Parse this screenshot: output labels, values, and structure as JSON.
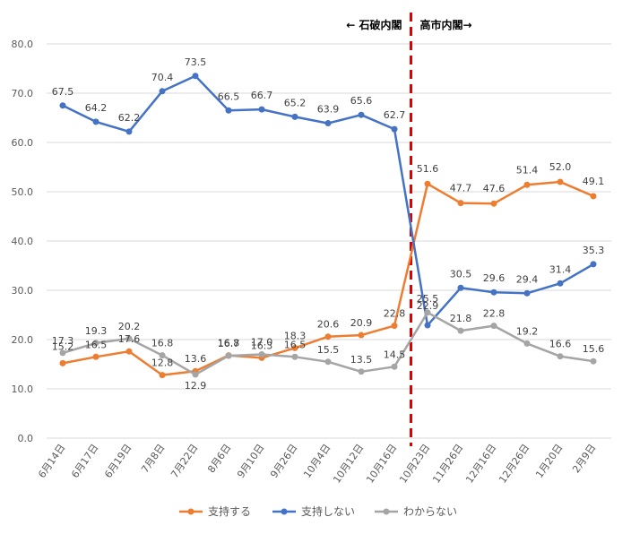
{
  "chart_data": {
    "type": "line",
    "categories": [
      "6月14日",
      "6月17日",
      "6月19日",
      "7月8日",
      "7月22日",
      "8月6日",
      "9月10日",
      "9月26日",
      "10月4日",
      "10月12日",
      "10月16日",
      "10月23日",
      "11月26日",
      "12月16日",
      "12月26日",
      "1月20日",
      "2月9日"
    ],
    "series": [
      {
        "name": "支持する",
        "color": "#ED7D31",
        "values": [
          15.2,
          16.5,
          17.6,
          12.8,
          13.6,
          16.8,
          16.3,
          18.3,
          20.6,
          20.9,
          22.8,
          51.6,
          47.7,
          47.6,
          51.4,
          52.0,
          49.1
        ]
      },
      {
        "name": "支持しない",
        "color": "#4472C4",
        "values": [
          67.5,
          64.2,
          62.2,
          70.4,
          73.5,
          66.5,
          66.7,
          65.2,
          63.9,
          65.6,
          62.7,
          22.9,
          30.5,
          29.6,
          29.4,
          31.4,
          35.3
        ]
      },
      {
        "name": "わからない",
        "color": "#A5A5A5",
        "values": [
          17.3,
          19.3,
          20.2,
          16.8,
          12.9,
          16.7,
          17.0,
          16.5,
          15.5,
          13.5,
          14.5,
          25.5,
          21.8,
          22.8,
          19.2,
          16.6,
          15.6
        ]
      }
    ],
    "yticks": [
      "0.0",
      "10.0",
      "20.0",
      "30.0",
      "40.0",
      "50.0",
      "60.0",
      "70.0",
      "80.0"
    ],
    "ylim": [
      0,
      80
    ],
    "grid": true,
    "legend_position": "bottom",
    "annotations": {
      "left": "← 石破内閣",
      "right": "高市内閣→"
    },
    "divider_after_category": "10月16日",
    "divider_color": "#E00000",
    "value_labels": {
      "支持する": [
        "15.2",
        "16.5",
        "17.6",
        "12.8",
        "13.6",
        "16.8",
        "16.3",
        "18.3",
        "20.6",
        "20.9",
        "22.8",
        "51.6",
        "47.7",
        "47.6",
        "51.4",
        "52.0",
        "49.1"
      ],
      "支持しない": [
        "67.5",
        "64.2",
        "62.2",
        "70.4",
        "73.5",
        "66.5",
        "66.7",
        "65.2",
        "63.9",
        "65.6",
        "62.7",
        "22.9",
        "30.5",
        "29.6",
        "29.4",
        "31.4",
        "35.3"
      ],
      "わからない": [
        "17.3",
        "19.3",
        "20.2",
        "16.8",
        "12.9",
        "16.7",
        "17.0",
        "16.5",
        "15.5",
        "13.5",
        "14.5",
        "25.5",
        "21.8",
        "22.8",
        "19.2",
        "16.6",
        "15.6"
      ]
    }
  }
}
